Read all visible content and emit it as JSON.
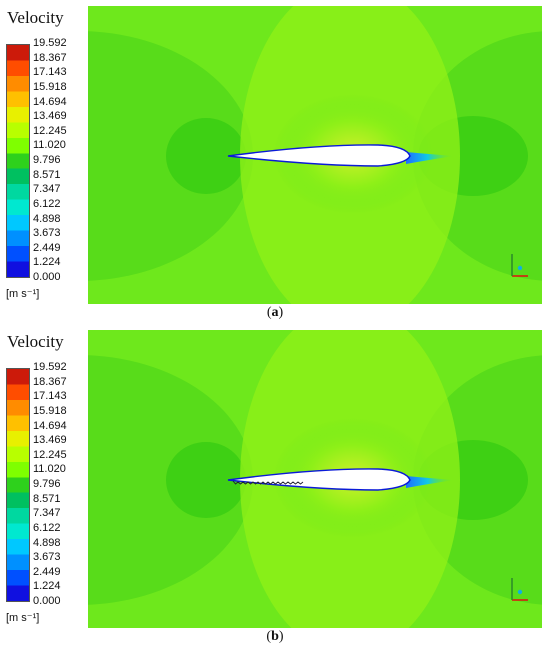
{
  "chart_data": [
    {
      "type": "heatmap",
      "panel_label": "a",
      "legend": {
        "title": "Velocity",
        "unit": "[m s⁻¹]",
        "ticks": [
          "19.592",
          "18.367",
          "17.143",
          "15.918",
          "14.694",
          "13.469",
          "12.245",
          "11.020",
          "9.796",
          "8.571",
          "7.347",
          "6.122",
          "4.898",
          "3.673",
          "2.449",
          "1.224",
          "0.000"
        ],
        "range": [
          0.0,
          19.592
        ],
        "colormap": [
          "#cc1a0a",
          "#ff4d00",
          "#ff8c00",
          "#ffc000",
          "#e8f000",
          "#b8ff00",
          "#7fff00",
          "#2ed11c",
          "#00c060",
          "#00d8a0",
          "#00e8d0",
          "#00c8ff",
          "#0090ff",
          "#0050ff",
          "#1010e0"
        ]
      },
      "field": {
        "freestream_color": "#6ee81c",
        "near_zone_color": "#8ef018",
        "wake_zone_color": "#3ed014",
        "suction_color": "#cff02a",
        "wake_low_color": "#1e6eff",
        "airfoil_color": "#ffffff",
        "airfoil_edge_color": "#0a1ad8",
        "serrated_trailing_edge": false
      },
      "axes_triad": {
        "x_color": "#e01010",
        "y_color": "#2a8a2a",
        "z_color": "#10b0e0"
      }
    },
    {
      "type": "heatmap",
      "panel_label": "b",
      "legend": {
        "title": "Velocity",
        "unit": "[m s⁻¹]",
        "ticks": [
          "19.592",
          "18.367",
          "17.143",
          "15.918",
          "14.694",
          "13.469",
          "12.245",
          "11.020",
          "9.796",
          "8.571",
          "7.347",
          "6.122",
          "4.898",
          "3.673",
          "2.449",
          "1.224",
          "0.000"
        ],
        "range": [
          0.0,
          19.592
        ],
        "colormap": [
          "#cc1a0a",
          "#ff4d00",
          "#ff8c00",
          "#ffc000",
          "#e8f000",
          "#b8ff00",
          "#7fff00",
          "#2ed11c",
          "#00c060",
          "#00d8a0",
          "#00e8d0",
          "#00c8ff",
          "#0090ff",
          "#0050ff",
          "#1010e0"
        ]
      },
      "field": {
        "freestream_color": "#6ee81c",
        "near_zone_color": "#8ef018",
        "wake_zone_color": "#3ed014",
        "suction_color": "#cff02a",
        "wake_low_color": "#1e6eff",
        "airfoil_color": "#ffffff",
        "airfoil_edge_color": "#0a1ad8",
        "serrated_trailing_edge": true
      },
      "axes_triad": {
        "x_color": "#e01010",
        "y_color": "#2a8a2a",
        "z_color": "#10b0e0"
      }
    }
  ]
}
